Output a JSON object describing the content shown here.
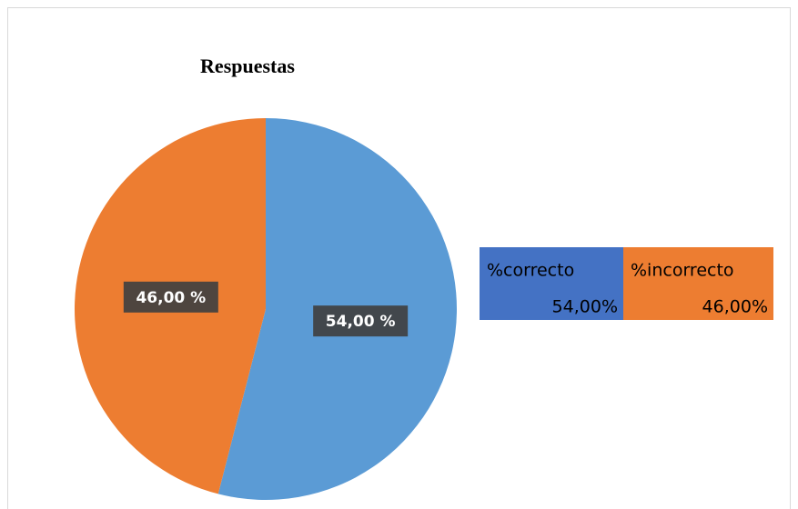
{
  "chart_data": {
    "type": "pie",
    "title": "Respuestas",
    "categories": [
      "%correcto",
      "%incorrecto"
    ],
    "values": [
      54,
      46
    ],
    "value_labels": [
      "54,00 %",
      "46,00 %"
    ],
    "colors": [
      "#5b9bd5",
      "#ed7d31"
    ],
    "table_colors": [
      "#4472c4",
      "#ed7d31"
    ],
    "table_value_labels": [
      "54,00%",
      "46,00%"
    ]
  }
}
